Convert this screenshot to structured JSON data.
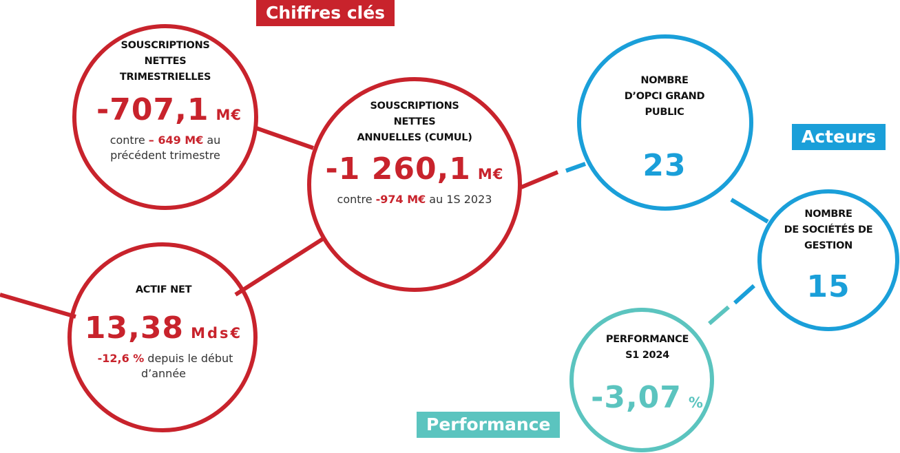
{
  "sections": {
    "key_figures": "Chiffres clés",
    "actors": "Acteurs",
    "performance": "Performance"
  },
  "cards": [
    {
      "title": [
        "SOUSCRIPTIONS",
        "NETTES",
        "TRIMESTRIELLES"
      ],
      "value": "-707,1",
      "unit": "M€",
      "note": {
        "before": "contre",
        "highlight": "– 649 M€",
        "after": "au précédent trimestre"
      }
    },
    {
      "title": [
        "SOUSCRIPTIONS",
        "NETTES",
        "ANNUELLES (CUMUL)"
      ],
      "value": "-1 260,1",
      "unit": "M€",
      "note": {
        "before": "contre",
        "highlight": "-974 M€",
        "after": "au 1S 2023"
      }
    },
    {
      "title": [
        "ACTIF NET"
      ],
      "value": "13,38",
      "unit": "Mds€",
      "note": {
        "highlight": "-12,6 %",
        "after": "depuis le début d’année"
      }
    },
    {
      "title": [
        "NOMBRE",
        "D’OPCI GRAND",
        "PUBLIC"
      ],
      "value": "23"
    },
    {
      "title": [
        "NOMBRE",
        "DE SOCIÉTÉS DE",
        "GESTION"
      ],
      "value": "15"
    },
    {
      "title": [
        "PERFORMANCE",
        "S1 2024"
      ],
      "value": "-3,07",
      "unit": "%"
    }
  ]
}
